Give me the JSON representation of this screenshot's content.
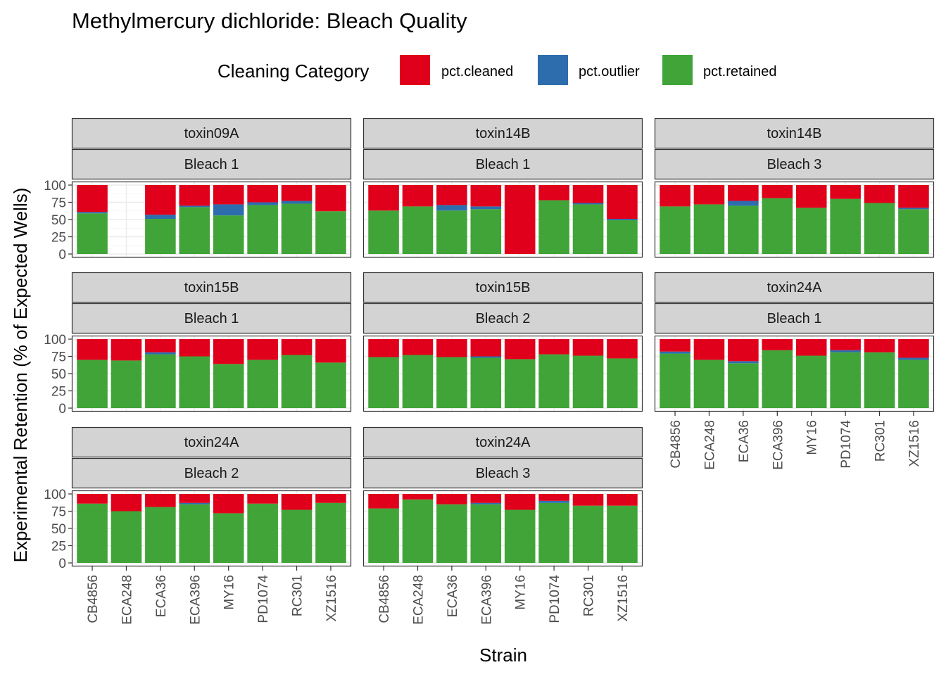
{
  "chart_data": {
    "type": "bar",
    "title": "Methylmercury dichloride: Bleach Quality",
    "xlabel": "Strain",
    "ylabel": "Experimental Retention (% of Expected Wells)",
    "legend": {
      "title": "Cleaning Category",
      "placement": "top",
      "entries": [
        {
          "name": "pct.cleaned",
          "color": "#E0001B"
        },
        {
          "name": "pct.outlier",
          "color": "#2D6DAE"
        },
        {
          "name": "pct.retained",
          "color": "#41A438"
        }
      ]
    },
    "categories": [
      "CB4856",
      "ECA248",
      "ECA36",
      "ECA396",
      "MY16",
      "PD1074",
      "RC301",
      "XZ1516"
    ],
    "ylim": [
      0,
      100
    ],
    "yticks": [
      0,
      25,
      50,
      75,
      100
    ],
    "stack_order": [
      "pct.retained",
      "pct.outlier",
      "pct.cleaned"
    ],
    "panels": [
      {
        "toxin": "toxin09A",
        "bleach": "Bleach 1",
        "retained": [
          59,
          null,
          51,
          68,
          56,
          71,
          73,
          62
        ],
        "outlier": [
          2,
          null,
          6,
          2,
          16,
          4,
          4,
          0
        ],
        "cleaned": [
          39,
          null,
          43,
          30,
          28,
          25,
          23,
          38
        ]
      },
      {
        "toxin": "toxin14B",
        "bleach": "Bleach 1",
        "retained": [
          63,
          69,
          63,
          65,
          0,
          78,
          72,
          49
        ],
        "outlier": [
          0,
          0,
          8,
          4,
          0,
          0,
          2,
          2
        ],
        "cleaned": [
          37,
          31,
          29,
          31,
          100,
          22,
          26,
          49
        ]
      },
      {
        "toxin": "toxin14B",
        "bleach": "Bleach 3",
        "retained": [
          69,
          72,
          70,
          81,
          67,
          80,
          74,
          65
        ],
        "outlier": [
          0,
          0,
          7,
          0,
          0,
          0,
          0,
          2
        ],
        "cleaned": [
          31,
          28,
          23,
          19,
          33,
          20,
          26,
          33
        ]
      },
      {
        "toxin": "toxin15B",
        "bleach": "Bleach 1",
        "retained": [
          70,
          69,
          78,
          75,
          64,
          70,
          77,
          66
        ],
        "outlier": [
          0,
          0,
          3,
          0,
          0,
          0,
          0,
          0
        ],
        "cleaned": [
          30,
          31,
          19,
          25,
          36,
          30,
          23,
          34
        ]
      },
      {
        "toxin": "toxin15B",
        "bleach": "Bleach 2",
        "retained": [
          74,
          77,
          74,
          73,
          71,
          78,
          76,
          72
        ],
        "outlier": [
          0,
          0,
          0,
          2,
          0,
          0,
          0,
          0
        ],
        "cleaned": [
          26,
          23,
          26,
          25,
          29,
          22,
          24,
          28
        ]
      },
      {
        "toxin": "toxin24A",
        "bleach": "Bleach 1",
        "retained": [
          79,
          70,
          65,
          84,
          76,
          81,
          81,
          70
        ],
        "outlier": [
          3,
          0,
          3,
          0,
          0,
          3,
          0,
          3
        ],
        "cleaned": [
          18,
          30,
          32,
          16,
          24,
          16,
          19,
          27
        ]
      },
      {
        "toxin": "toxin24A",
        "bleach": "Bleach 2",
        "retained": [
          86,
          75,
          81,
          85,
          72,
          86,
          77,
          87
        ],
        "outlier": [
          0,
          0,
          0,
          2,
          0,
          0,
          0,
          0
        ],
        "cleaned": [
          14,
          25,
          19,
          13,
          28,
          14,
          23,
          13
        ]
      },
      {
        "toxin": "toxin24A",
        "bleach": "Bleach 3",
        "retained": [
          79,
          92,
          85,
          85,
          77,
          87,
          83,
          83
        ],
        "outlier": [
          0,
          0,
          0,
          2,
          0,
          3,
          0,
          0
        ],
        "cleaned": [
          21,
          8,
          15,
          13,
          23,
          10,
          17,
          17
        ]
      }
    ]
  }
}
